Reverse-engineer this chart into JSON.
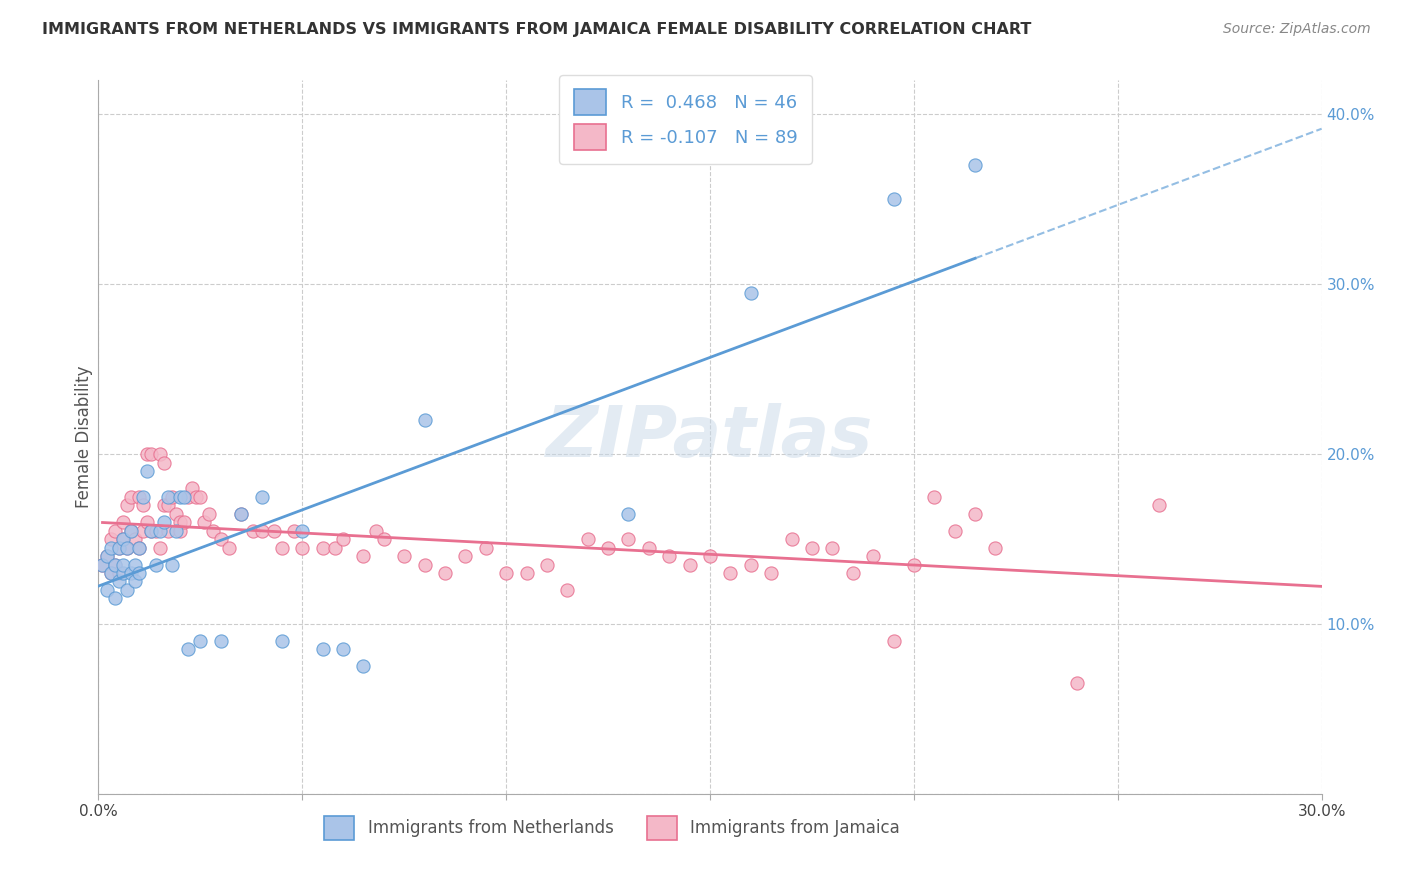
{
  "title": "IMMIGRANTS FROM NETHERLANDS VS IMMIGRANTS FROM JAMAICA FEMALE DISABILITY CORRELATION CHART",
  "source": "Source: ZipAtlas.com",
  "ylabel": "Female Disability",
  "xlim": [
    0.0,
    0.3
  ],
  "ylim": [
    0.0,
    0.42
  ],
  "xticks": [
    0.0,
    0.05,
    0.1,
    0.15,
    0.2,
    0.25,
    0.3
  ],
  "xticklabels": [
    "0.0%",
    "",
    "",
    "",
    "",
    "",
    "30.0%"
  ],
  "yticks": [
    0.0,
    0.1,
    0.2,
    0.3,
    0.4
  ],
  "yticklabels": [
    "",
    "10.0%",
    "20.0%",
    "30.0%",
    "40.0%"
  ],
  "series1_name": "Immigrants from Netherlands",
  "series1_R": "0.468",
  "series1_N": "46",
  "series1_color": "#aac4e8",
  "series1_edge_color": "#5b9bd5",
  "series1_line_color": "#5b9bd5",
  "series2_name": "Immigrants from Jamaica",
  "series2_R": "-0.107",
  "series2_N": "89",
  "series2_color": "#f4b8c8",
  "series2_edge_color": "#e87090",
  "series2_line_color": "#e87090",
  "tick_color": "#5b9bd5",
  "watermark": "ZIPatlas",
  "series1_x": [
    0.001,
    0.002,
    0.002,
    0.003,
    0.003,
    0.004,
    0.004,
    0.005,
    0.005,
    0.006,
    0.006,
    0.006,
    0.007,
    0.007,
    0.008,
    0.008,
    0.009,
    0.009,
    0.01,
    0.01,
    0.011,
    0.012,
    0.013,
    0.014,
    0.015,
    0.016,
    0.017,
    0.018,
    0.019,
    0.02,
    0.021,
    0.022,
    0.025,
    0.03,
    0.035,
    0.04,
    0.045,
    0.05,
    0.055,
    0.06,
    0.065,
    0.08,
    0.13,
    0.16,
    0.195,
    0.215
  ],
  "series1_y": [
    0.135,
    0.14,
    0.12,
    0.13,
    0.145,
    0.135,
    0.115,
    0.145,
    0.125,
    0.13,
    0.135,
    0.15,
    0.12,
    0.145,
    0.13,
    0.155,
    0.135,
    0.125,
    0.145,
    0.13,
    0.175,
    0.19,
    0.155,
    0.135,
    0.155,
    0.16,
    0.175,
    0.135,
    0.155,
    0.175,
    0.175,
    0.085,
    0.09,
    0.09,
    0.165,
    0.175,
    0.09,
    0.155,
    0.085,
    0.085,
    0.075,
    0.22,
    0.165,
    0.295,
    0.35,
    0.37
  ],
  "series2_x": [
    0.001,
    0.002,
    0.003,
    0.003,
    0.004,
    0.004,
    0.005,
    0.005,
    0.006,
    0.006,
    0.007,
    0.007,
    0.008,
    0.008,
    0.009,
    0.01,
    0.01,
    0.011,
    0.011,
    0.012,
    0.012,
    0.013,
    0.013,
    0.014,
    0.015,
    0.015,
    0.016,
    0.016,
    0.017,
    0.017,
    0.018,
    0.019,
    0.02,
    0.02,
    0.021,
    0.022,
    0.023,
    0.024,
    0.025,
    0.026,
    0.027,
    0.028,
    0.03,
    0.032,
    0.035,
    0.038,
    0.04,
    0.043,
    0.045,
    0.048,
    0.05,
    0.055,
    0.058,
    0.06,
    0.065,
    0.068,
    0.07,
    0.075,
    0.08,
    0.085,
    0.09,
    0.095,
    0.1,
    0.105,
    0.11,
    0.115,
    0.12,
    0.125,
    0.13,
    0.135,
    0.14,
    0.145,
    0.15,
    0.155,
    0.16,
    0.165,
    0.17,
    0.175,
    0.18,
    0.185,
    0.19,
    0.195,
    0.2,
    0.205,
    0.21,
    0.215,
    0.22,
    0.24,
    0.26
  ],
  "series2_y": [
    0.135,
    0.14,
    0.13,
    0.15,
    0.135,
    0.155,
    0.145,
    0.13,
    0.15,
    0.16,
    0.145,
    0.17,
    0.155,
    0.175,
    0.15,
    0.145,
    0.175,
    0.17,
    0.155,
    0.16,
    0.2,
    0.2,
    0.155,
    0.155,
    0.2,
    0.145,
    0.195,
    0.17,
    0.17,
    0.155,
    0.175,
    0.165,
    0.16,
    0.155,
    0.16,
    0.175,
    0.18,
    0.175,
    0.175,
    0.16,
    0.165,
    0.155,
    0.15,
    0.145,
    0.165,
    0.155,
    0.155,
    0.155,
    0.145,
    0.155,
    0.145,
    0.145,
    0.145,
    0.15,
    0.14,
    0.155,
    0.15,
    0.14,
    0.135,
    0.13,
    0.14,
    0.145,
    0.13,
    0.13,
    0.135,
    0.12,
    0.15,
    0.145,
    0.15,
    0.145,
    0.14,
    0.135,
    0.14,
    0.13,
    0.135,
    0.13,
    0.15,
    0.145,
    0.145,
    0.13,
    0.14,
    0.09,
    0.135,
    0.175,
    0.155,
    0.165,
    0.145,
    0.065,
    0.17
  ]
}
